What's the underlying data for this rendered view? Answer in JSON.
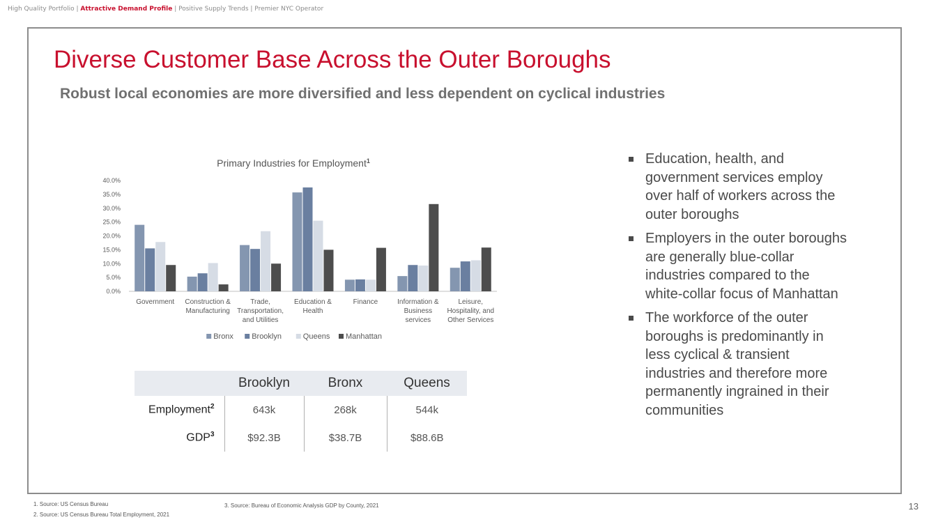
{
  "topnav": {
    "items": [
      "High Quality Portfolio",
      "Attractive Demand Profile",
      "Positive Supply Trends",
      "Premier NYC Operator"
    ],
    "separator": " | "
  },
  "title": "Diverse Customer Base Across the Outer Boroughs",
  "subtitle": "Robust local economies are more diversified and less dependent on cyclical industries",
  "chart_data": {
    "type": "bar",
    "title": "Primary Industries for Employment",
    "title_superscript": "1",
    "categories": [
      [
        "Government"
      ],
      [
        "Construction &",
        "Manufacturing"
      ],
      [
        "Trade,",
        "Transportation,",
        "and Utilities"
      ],
      [
        "Education &",
        "Health"
      ],
      [
        "Finance"
      ],
      [
        "Information &",
        "Business",
        "services"
      ],
      [
        "Leisure,",
        "Hospitality, and",
        "Other Services"
      ]
    ],
    "series": [
      {
        "name": "Bronx",
        "color": "#8496b0",
        "values": [
          24.0,
          5.3,
          16.7,
          35.7,
          4.2,
          5.5,
          8.5
        ]
      },
      {
        "name": "Brooklyn",
        "color": "#6a7fa0",
        "values": [
          15.5,
          6.5,
          15.3,
          37.5,
          4.3,
          9.5,
          10.8
        ]
      },
      {
        "name": "Queens",
        "color": "#d6dce5",
        "values": [
          17.8,
          10.2,
          21.7,
          25.5,
          4.2,
          9.3,
          11.2
        ]
      },
      {
        "name": "Manhattan",
        "color": "#4d4d4d",
        "values": [
          9.5,
          2.5,
          10.0,
          15.0,
          15.7,
          31.5,
          15.8
        ]
      }
    ],
    "ylim": [
      0,
      40
    ],
    "yticks": [
      "0.0%",
      "5.0%",
      "10.0%",
      "15.0%",
      "20.0%",
      "25.0%",
      "30.0%",
      "35.0%",
      "40.0%"
    ],
    "xlabel": "",
    "ylabel": "",
    "legend_position": "bottom",
    "grid": false
  },
  "stats_table": {
    "columns": [
      "Brooklyn",
      "Bronx",
      "Queens"
    ],
    "rows": [
      {
        "label": "Employment",
        "sup": "2",
        "values": [
          "643k",
          "268k",
          "544k"
        ]
      },
      {
        "label": "GDP",
        "sup": "3",
        "values": [
          "$92.3B",
          "$38.7B",
          "$88.6B"
        ]
      }
    ]
  },
  "bullets": [
    "Education, health, and government services employ over half of workers across the outer boroughs",
    "Employers in the outer boroughs are generally blue-collar industries compared to the white-collar focus of Manhattan",
    "The workforce of the outer boroughs is predominantly in less cyclical & transient industries and therefore more permanently ingrained in their communities"
  ],
  "footnotes": {
    "f1": "1.   Source: US Census Bureau",
    "f2": "2.   Source: US Census Bureau Total Employment, 2021",
    "f3": "3.     Source: Bureau of Economic Analysis GDP by County, 2021"
  },
  "page_number": "13"
}
